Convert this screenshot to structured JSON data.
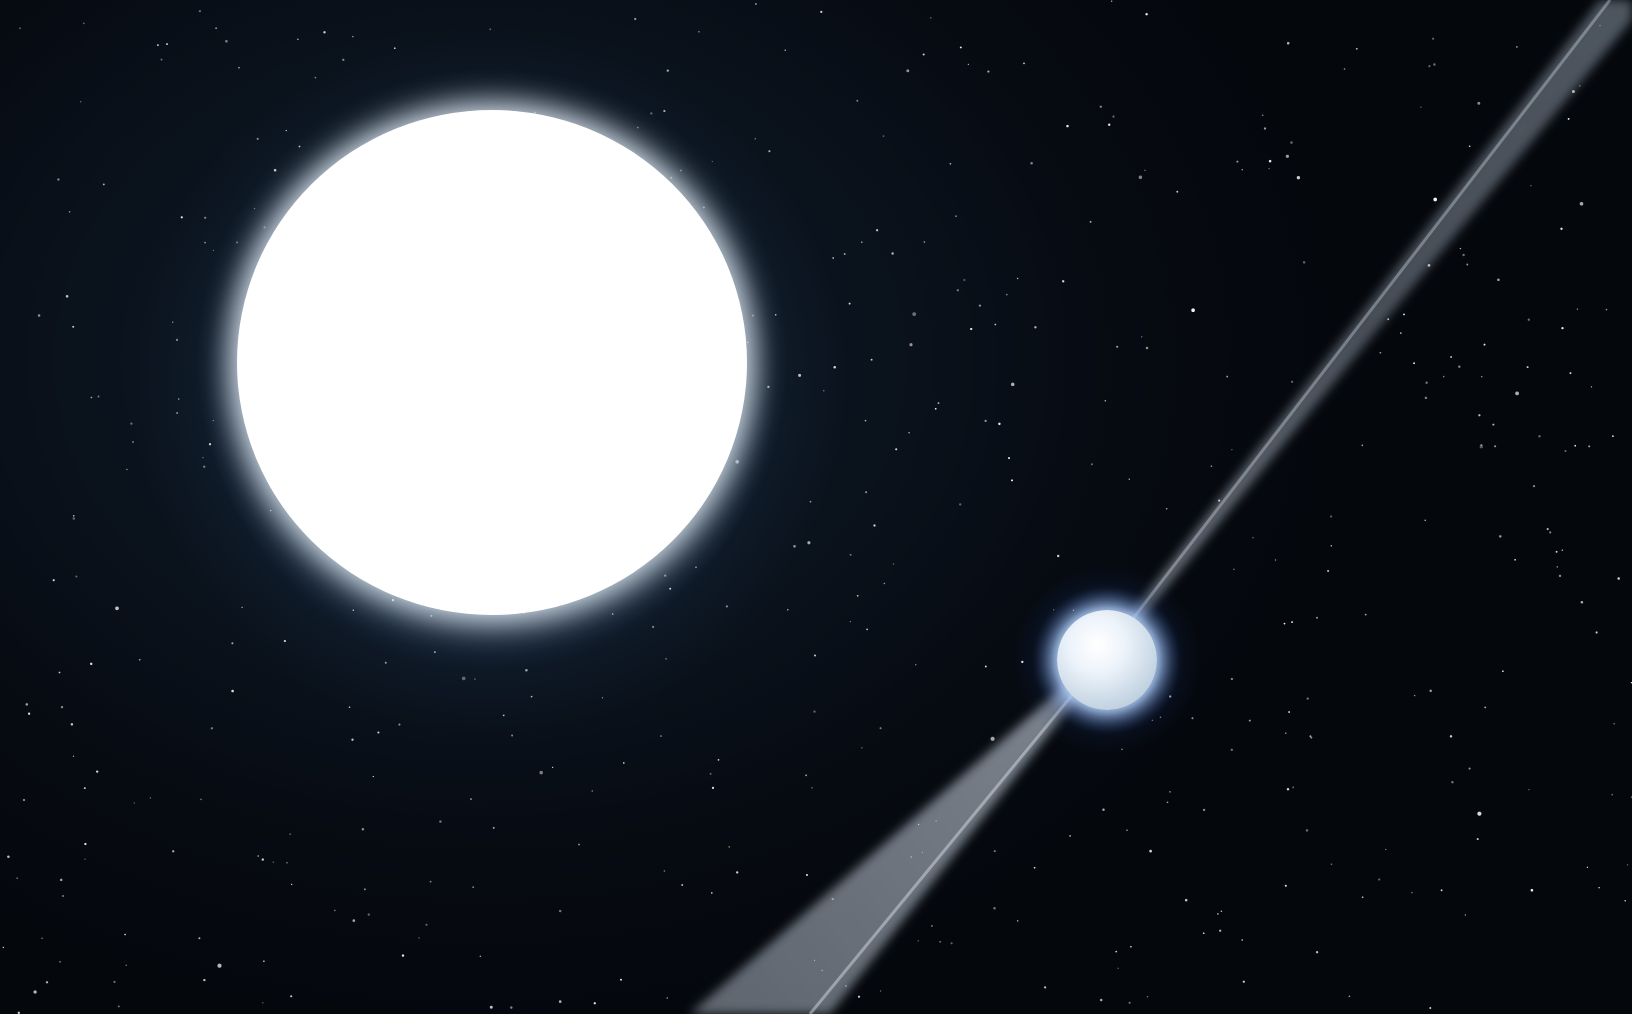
{
  "scene": {
    "description_visible_text": "",
    "colors": {
      "space_background": "#05090f",
      "star_core": "#ffffff",
      "star_halo": "#5a82af",
      "pulsar_glow": "#3c6ed2",
      "beam": "#9aa6b4"
    },
    "objects": [
      {
        "name": "white-dwarf-companion",
        "icon": "star-icon"
      },
      {
        "name": "pulsar",
        "icon": "neutron-star-icon"
      },
      {
        "name": "pulsar-beam",
        "icon": "beam-icon"
      }
    ]
  }
}
